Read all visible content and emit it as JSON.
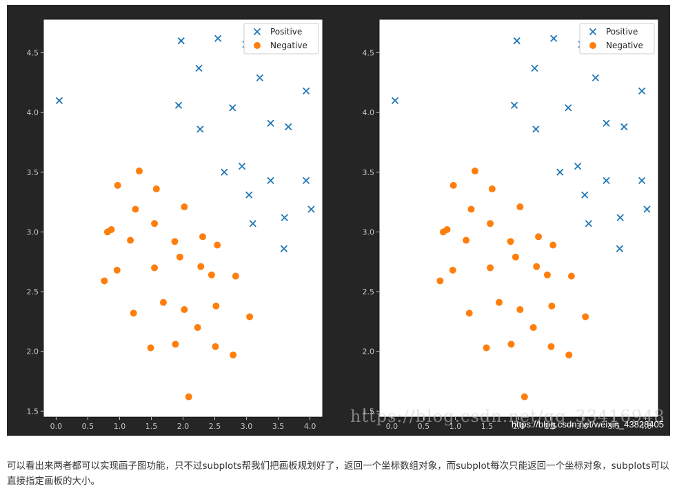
{
  "chart_data": [
    {
      "type": "scatter",
      "xlim": [
        -0.2,
        4.2
      ],
      "ylim": [
        1.45,
        4.78
      ],
      "xticks": [
        "0.0",
        "0.5",
        "1.0",
        "1.5",
        "2.0",
        "2.5",
        "3.0",
        "3.5",
        "4.0"
      ],
      "yticks": [
        "1.5",
        "2.0",
        "2.5",
        "3.0",
        "3.5",
        "4.0",
        "4.5"
      ],
      "legend_position": "upper-right",
      "series": [
        {
          "name": "Positive",
          "marker": "x",
          "color": "#1f77b4",
          "points": [
            [
              0.05,
              4.1
            ],
            [
              1.97,
              4.6
            ],
            [
              2.55,
              4.62
            ],
            [
              2.99,
              4.57
            ],
            [
              2.25,
              4.37
            ],
            [
              3.21,
              4.29
            ],
            [
              1.93,
              4.06
            ],
            [
              2.78,
              4.04
            ],
            [
              3.94,
              4.18
            ],
            [
              2.27,
              3.86
            ],
            [
              3.38,
              3.91
            ],
            [
              3.66,
              3.88
            ],
            [
              2.93,
              3.55
            ],
            [
              2.65,
              3.5
            ],
            [
              3.38,
              3.43
            ],
            [
              3.94,
              3.43
            ],
            [
              4.02,
              3.19
            ],
            [
              3.04,
              3.31
            ],
            [
              3.1,
              3.07
            ],
            [
              3.6,
              3.12
            ],
            [
              3.59,
              2.86
            ]
          ]
        },
        {
          "name": "Negative",
          "marker": "o",
          "color": "#ff7f0e",
          "points": [
            [
              1.31,
              3.51
            ],
            [
              0.97,
              3.39
            ],
            [
              1.58,
              3.36
            ],
            [
              1.25,
              3.19
            ],
            [
              2.02,
              3.21
            ],
            [
              1.55,
              3.07
            ],
            [
              0.87,
              3.02
            ],
            [
              0.81,
              3.0
            ],
            [
              1.17,
              2.93
            ],
            [
              2.31,
              2.96
            ],
            [
              1.87,
              2.92
            ],
            [
              2.54,
              2.89
            ],
            [
              1.95,
              2.79
            ],
            [
              1.55,
              2.7
            ],
            [
              0.96,
              2.68
            ],
            [
              2.28,
              2.71
            ],
            [
              2.45,
              2.64
            ],
            [
              2.83,
              2.63
            ],
            [
              0.76,
              2.59
            ],
            [
              1.69,
              2.41
            ],
            [
              2.52,
              2.38
            ],
            [
              2.02,
              2.35
            ],
            [
              1.22,
              2.32
            ],
            [
              3.05,
              2.29
            ],
            [
              2.23,
              2.2
            ],
            [
              1.88,
              2.06
            ],
            [
              1.49,
              2.03
            ],
            [
              2.51,
              2.04
            ],
            [
              2.79,
              1.97
            ],
            [
              2.09,
              1.62
            ]
          ]
        }
      ]
    },
    {
      "type": "scatter",
      "xlim": [
        -0.2,
        4.2
      ],
      "ylim": [
        1.45,
        4.78
      ],
      "xticks": [
        "0.0",
        "0.5",
        "1.0",
        "1.5",
        "2.0",
        "2.5",
        "3.0",
        "3.5",
        "4.0"
      ],
      "yticks": [
        "1.5",
        "2.0",
        "2.5",
        "3.0",
        "3.5",
        "4.0",
        "4.5"
      ],
      "legend_position": "upper-right",
      "series": [
        {
          "name": "Positive",
          "marker": "x",
          "color": "#1f77b4",
          "points": [
            [
              0.05,
              4.1
            ],
            [
              1.97,
              4.6
            ],
            [
              2.55,
              4.62
            ],
            [
              2.99,
              4.57
            ],
            [
              2.25,
              4.37
            ],
            [
              3.21,
              4.29
            ],
            [
              1.93,
              4.06
            ],
            [
              2.78,
              4.04
            ],
            [
              3.94,
              4.18
            ],
            [
              2.27,
              3.86
            ],
            [
              3.38,
              3.91
            ],
            [
              3.66,
              3.88
            ],
            [
              2.93,
              3.55
            ],
            [
              2.65,
              3.5
            ],
            [
              3.38,
              3.43
            ],
            [
              3.94,
              3.43
            ],
            [
              4.02,
              3.19
            ],
            [
              3.04,
              3.31
            ],
            [
              3.1,
              3.07
            ],
            [
              3.6,
              3.12
            ],
            [
              3.59,
              2.86
            ]
          ]
        },
        {
          "name": "Negative",
          "marker": "o",
          "color": "#ff7f0e",
          "points": [
            [
              1.31,
              3.51
            ],
            [
              0.97,
              3.39
            ],
            [
              1.58,
              3.36
            ],
            [
              1.25,
              3.19
            ],
            [
              2.02,
              3.21
            ],
            [
              1.55,
              3.07
            ],
            [
              0.87,
              3.02
            ],
            [
              0.81,
              3.0
            ],
            [
              1.17,
              2.93
            ],
            [
              2.31,
              2.96
            ],
            [
              1.87,
              2.92
            ],
            [
              2.54,
              2.89
            ],
            [
              1.95,
              2.79
            ],
            [
              1.55,
              2.7
            ],
            [
              0.96,
              2.68
            ],
            [
              2.28,
              2.71
            ],
            [
              2.45,
              2.64
            ],
            [
              2.83,
              2.63
            ],
            [
              0.76,
              2.59
            ],
            [
              1.69,
              2.41
            ],
            [
              2.52,
              2.38
            ],
            [
              2.02,
              2.35
            ],
            [
              1.22,
              2.32
            ],
            [
              3.05,
              2.29
            ],
            [
              2.23,
              2.2
            ],
            [
              1.88,
              2.06
            ],
            [
              1.49,
              2.03
            ],
            [
              2.51,
              2.04
            ],
            [
              2.79,
              1.97
            ],
            [
              2.09,
              1.62
            ]
          ]
        }
      ]
    }
  ],
  "watermark": {
    "overlay": "https://blog.csdn.net/qq_33416948",
    "corner": "https://blog.csdn.net/weixin_43828405"
  },
  "caption": "可以看出来两者都可以实现画子图功能，只不过subplots帮我们把画板规划好了，返回一个坐标数组对象，而subplot每次只能返回一个坐标对象，subplots可以直接指定画板的大小。"
}
